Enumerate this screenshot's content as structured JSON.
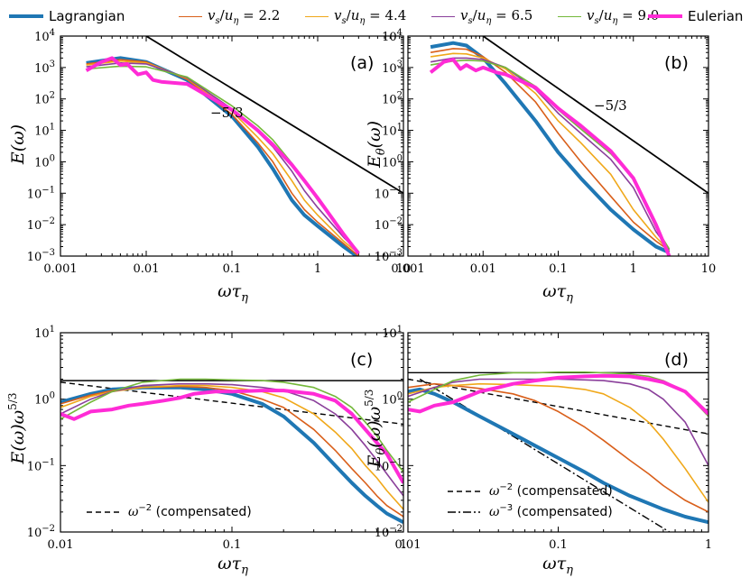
{
  "legend": [
    {
      "label": "Lagrangian",
      "color": "#1f77b4",
      "width": 4
    },
    {
      "label": "vs/uη = 2.2",
      "color": "#d95f1a",
      "width": 1.6
    },
    {
      "label": "vs/uη = 4.4",
      "color": "#f0a81a",
      "width": 1.6
    },
    {
      "label": "vs/uη = 6.5",
      "color": "#8a3f9a",
      "width": 1.6
    },
    {
      "label": "vs/uη = 9.0",
      "color": "#74b83a",
      "width": 1.6
    },
    {
      "label": "Eulerian",
      "color": "#ff2bd6",
      "width": 4
    }
  ],
  "chart_data": [
    {
      "type": "line",
      "panel": "(a)",
      "xscale": "log",
      "yscale": "log",
      "xlim": [
        0.001,
        10
      ],
      "ylim": [
        0.001,
        10000
      ],
      "xticks": [
        "0.001",
        "0.01",
        "0.1",
        "1",
        "10"
      ],
      "yticks": [
        "10^-3",
        "10^-2",
        "10^-1",
        "10^0",
        "10^1",
        "10^2",
        "10^3",
        "10^4"
      ],
      "xlabel": "ωτη",
      "ylabel": "E(ω)",
      "annotations": [
        {
          "text": "−5/3"
        }
      ],
      "reference_lines": [
        {
          "kind": "slope",
          "x": [
            0.01,
            10
          ],
          "y": [
            10000,
            0.1
          ]
        }
      ],
      "series": [
        {
          "name": "Lagrangian",
          "x": [
            0.002,
            0.005,
            0.01,
            0.03,
            0.1,
            0.2,
            0.3,
            0.5,
            0.7,
            1,
            2,
            3
          ],
          "y": [
            1400,
            2000,
            1500,
            400,
            28,
            3,
            0.6,
            0.06,
            0.02,
            0.009,
            0.002,
            0.0009
          ]
        },
        {
          "name": "vs/uη = 2.2",
          "x": [
            0.002,
            0.005,
            0.01,
            0.03,
            0.1,
            0.2,
            0.3,
            0.5,
            0.7,
            1,
            2,
            3
          ],
          "y": [
            1300,
            1800,
            1500,
            420,
            32,
            4,
            1,
            0.1,
            0.03,
            0.012,
            0.0025,
            0.001
          ]
        },
        {
          "name": "vs/uη = 4.4",
          "x": [
            0.002,
            0.005,
            0.01,
            0.03,
            0.1,
            0.2,
            0.3,
            0.5,
            0.7,
            1,
            2,
            3
          ],
          "y": [
            1200,
            1600,
            1400,
            450,
            40,
            6,
            1.8,
            0.25,
            0.06,
            0.02,
            0.003,
            0.0012
          ]
        },
        {
          "name": "vs/uη = 6.5",
          "x": [
            0.002,
            0.005,
            0.01,
            0.03,
            0.1,
            0.2,
            0.3,
            0.5,
            0.7,
            1,
            2,
            3
          ],
          "y": [
            1050,
            1400,
            1300,
            470,
            48,
            9,
            3,
            0.5,
            0.12,
            0.035,
            0.004,
            0.0013
          ]
        },
        {
          "name": "vs/uη = 9.0",
          "x": [
            0.002,
            0.005,
            0.01,
            0.03,
            0.1,
            0.2,
            0.3,
            0.5,
            0.7,
            1,
            2,
            3
          ],
          "y": [
            900,
            1100,
            1050,
            500,
            60,
            14,
            5,
            0.9,
            0.25,
            0.06,
            0.005,
            0.0014
          ]
        },
        {
          "name": "Eulerian",
          "x": [
            0.002,
            0.003,
            0.004,
            0.005,
            0.006,
            0.008,
            0.01,
            0.012,
            0.015,
            0.03,
            0.1,
            0.2,
            0.3,
            0.5,
            0.7,
            1,
            2,
            3
          ],
          "y": [
            800,
            1500,
            2000,
            1200,
            1300,
            600,
            700,
            400,
            350,
            300,
            45,
            10,
            3.5,
            0.8,
            0.25,
            0.07,
            0.005,
            0.0012
          ]
        }
      ]
    },
    {
      "type": "line",
      "panel": "(b)",
      "xscale": "log",
      "yscale": "log",
      "xlim": [
        0.001,
        10
      ],
      "ylim": [
        0.001,
        10000
      ],
      "xticks": [
        "0.001",
        "0.01",
        "0.1",
        "1",
        "10"
      ],
      "yticks": [
        "10^-3",
        "10^-2",
        "10^-1",
        "10^0",
        "10^1",
        "10^2",
        "10^3",
        "10^4"
      ],
      "xlabel": "ωτη",
      "ylabel": "Eθ(ω)",
      "annotations": [
        {
          "text": "−5/3"
        }
      ],
      "reference_lines": [
        {
          "kind": "slope",
          "x": [
            0.01,
            10
          ],
          "y": [
            10000,
            0.1
          ]
        }
      ],
      "series": [
        {
          "name": "Lagrangian",
          "x": [
            0.002,
            0.004,
            0.006,
            0.01,
            0.02,
            0.05,
            0.1,
            0.2,
            0.5,
            1,
            2,
            3
          ],
          "y": [
            4500,
            6000,
            5000,
            2000,
            300,
            20,
            2,
            0.3,
            0.03,
            0.007,
            0.002,
            0.0013
          ]
        },
        {
          "name": "vs/uη = 2.2",
          "x": [
            0.002,
            0.004,
            0.006,
            0.01,
            0.02,
            0.05,
            0.1,
            0.2,
            0.5,
            1,
            2,
            3
          ],
          "y": [
            3000,
            4000,
            3800,
            2200,
            700,
            80,
            8,
            1,
            0.08,
            0.012,
            0.003,
            0.0015
          ]
        },
        {
          "name": "vs/uη = 4.4",
          "x": [
            0.002,
            0.004,
            0.006,
            0.01,
            0.02,
            0.05,
            0.1,
            0.2,
            0.5,
            1,
            2,
            3
          ],
          "y": [
            2200,
            2800,
            2700,
            2000,
            900,
            150,
            20,
            4,
            0.4,
            0.03,
            0.004,
            0.0015
          ]
        },
        {
          "name": "vs/uη = 6.5",
          "x": [
            0.002,
            0.004,
            0.006,
            0.01,
            0.02,
            0.05,
            0.1,
            0.2,
            0.5,
            1,
            2,
            3
          ],
          "y": [
            1500,
            2000,
            2000,
            1800,
            1000,
            200,
            35,
            8,
            1.2,
            0.15,
            0.006,
            0.0016
          ]
        },
        {
          "name": "vs/uη = 9.0",
          "x": [
            0.002,
            0.004,
            0.006,
            0.01,
            0.02,
            0.05,
            0.1,
            0.2,
            0.5,
            1,
            2,
            3
          ],
          "y": [
            1200,
            1600,
            1700,
            1600,
            1000,
            250,
            45,
            11,
            1.8,
            0.3,
            0.008,
            0.0017
          ]
        },
        {
          "name": "Eulerian",
          "x": [
            0.002,
            0.003,
            0.004,
            0.005,
            0.006,
            0.008,
            0.01,
            0.015,
            0.02,
            0.05,
            0.1,
            0.2,
            0.5,
            1,
            2,
            3
          ],
          "y": [
            700,
            1500,
            1800,
            900,
            1200,
            800,
            1000,
            700,
            600,
            230,
            50,
            14,
            2.2,
            0.3,
            0.01,
            0.001
          ]
        }
      ]
    },
    {
      "type": "line",
      "panel": "(c)",
      "xscale": "log",
      "yscale": "log",
      "xlim": [
        0.01,
        1
      ],
      "ylim": [
        0.01,
        10
      ],
      "xticks": [
        "0.01",
        "0.1",
        "1"
      ],
      "yticks": [
        "10^-2",
        "10^-1",
        "10^0",
        "10^1"
      ],
      "xlabel": "ωτη",
      "ylabel": "E(ω)ω^5/3",
      "reference_lines": [
        {
          "kind": "horizontal",
          "y": 1.9
        },
        {
          "kind": "dashed",
          "label": "ω^-2 (compensated)",
          "x": [
            0.01,
            1
          ],
          "y": [
            1.8,
            0.42
          ]
        }
      ],
      "series": [
        {
          "name": "Lagrangian",
          "x": [
            0.01,
            0.015,
            0.02,
            0.03,
            0.05,
            0.07,
            0.1,
            0.15,
            0.2,
            0.3,
            0.4,
            0.5,
            0.6,
            0.7,
            0.8,
            1
          ],
          "y": [
            0.9,
            1.2,
            1.4,
            1.5,
            1.5,
            1.4,
            1.2,
            0.85,
            0.55,
            0.22,
            0.1,
            0.055,
            0.035,
            0.025,
            0.019,
            0.014
          ]
        },
        {
          "name": "vs/uη = 2.2",
          "x": [
            0.01,
            0.015,
            0.02,
            0.03,
            0.05,
            0.07,
            0.1,
            0.15,
            0.2,
            0.3,
            0.4,
            0.5,
            0.6,
            0.7,
            0.8,
            1
          ],
          "y": [
            0.85,
            1.15,
            1.35,
            1.5,
            1.55,
            1.5,
            1.35,
            1.0,
            0.75,
            0.35,
            0.17,
            0.09,
            0.055,
            0.035,
            0.025,
            0.017
          ]
        },
        {
          "name": "vs/uη = 4.4",
          "x": [
            0.01,
            0.015,
            0.02,
            0.03,
            0.05,
            0.07,
            0.1,
            0.15,
            0.2,
            0.3,
            0.4,
            0.5,
            0.6,
            0.7,
            0.8,
            1
          ],
          "y": [
            0.75,
            1.1,
            1.3,
            1.5,
            1.6,
            1.6,
            1.5,
            1.3,
            1.05,
            0.6,
            0.32,
            0.18,
            0.1,
            0.065,
            0.042,
            0.022
          ]
        },
        {
          "name": "vs/uη = 6.5",
          "x": [
            0.01,
            0.015,
            0.02,
            0.03,
            0.05,
            0.07,
            0.1,
            0.15,
            0.2,
            0.3,
            0.4,
            0.5,
            0.6,
            0.7,
            0.8,
            1
          ],
          "y": [
            0.6,
            1.0,
            1.3,
            1.6,
            1.7,
            1.7,
            1.65,
            1.5,
            1.35,
            0.95,
            0.6,
            0.35,
            0.2,
            0.12,
            0.075,
            0.035
          ]
        },
        {
          "name": "vs/uη = 9.0",
          "x": [
            0.01,
            0.015,
            0.02,
            0.03,
            0.05,
            0.07,
            0.1,
            0.15,
            0.2,
            0.3,
            0.4,
            0.5,
            0.6,
            0.7,
            0.8,
            1
          ],
          "y": [
            0.5,
            0.9,
            1.3,
            1.8,
            2.0,
            2.0,
            1.95,
            1.9,
            1.8,
            1.5,
            1.1,
            0.75,
            0.45,
            0.28,
            0.17,
            0.08
          ]
        },
        {
          "name": "Eulerian",
          "x": [
            0.01,
            0.012,
            0.015,
            0.02,
            0.025,
            0.03,
            0.04,
            0.05,
            0.06,
            0.08,
            0.1,
            0.15,
            0.2,
            0.3,
            0.4,
            0.5,
            0.6,
            0.7,
            0.8,
            1
          ],
          "y": [
            0.6,
            0.5,
            0.65,
            0.7,
            0.8,
            0.85,
            0.95,
            1.05,
            1.2,
            1.3,
            1.3,
            1.35,
            1.35,
            1.2,
            0.95,
            0.6,
            0.35,
            0.22,
            0.15,
            0.055
          ]
        }
      ]
    },
    {
      "type": "line",
      "panel": "(d)",
      "xscale": "log",
      "yscale": "log",
      "xlim": [
        0.01,
        1
      ],
      "ylim": [
        0.01,
        10
      ],
      "xticks": [
        "0.01",
        "0.1",
        "1"
      ],
      "yticks": [
        "10^-2",
        "10^-1",
        "10^0",
        "10^1"
      ],
      "xlabel": "ωτη",
      "ylabel": "Eθ(ω)ω^5/3",
      "reference_lines": [
        {
          "kind": "horizontal",
          "y": 2.5
        },
        {
          "kind": "dashed",
          "label": "ω^-2 (compensated)",
          "x": [
            0.01,
            1
          ],
          "y": [
            2.0,
            0.3
          ]
        },
        {
          "kind": "dashdot",
          "label": "ω^-3 (compensated)",
          "x": [
            0.012,
            0.55
          ],
          "y": [
            2.0,
            0.01
          ]
        }
      ],
      "series": [
        {
          "name": "Lagrangian",
          "x": [
            0.01,
            0.012,
            0.015,
            0.02,
            0.03,
            0.05,
            0.07,
            0.1,
            0.15,
            0.2,
            0.3,
            0.5,
            0.7,
            1
          ],
          "y": [
            1.3,
            1.4,
            1.2,
            0.9,
            0.55,
            0.3,
            0.2,
            0.13,
            0.08,
            0.055,
            0.035,
            0.022,
            0.017,
            0.014
          ]
        },
        {
          "name": "vs/uη = 2.2",
          "x": [
            0.01,
            0.015,
            0.02,
            0.03,
            0.05,
            0.07,
            0.1,
            0.15,
            0.2,
            0.3,
            0.4,
            0.5,
            0.7,
            1
          ],
          "y": [
            1.5,
            1.7,
            1.6,
            1.45,
            1.2,
            0.95,
            0.65,
            0.38,
            0.24,
            0.12,
            0.075,
            0.05,
            0.03,
            0.02
          ]
        },
        {
          "name": "vs/uη = 4.4",
          "x": [
            0.01,
            0.015,
            0.02,
            0.03,
            0.05,
            0.07,
            0.1,
            0.15,
            0.2,
            0.3,
            0.4,
            0.5,
            0.7,
            1
          ],
          "y": [
            1.2,
            1.5,
            1.6,
            1.7,
            1.65,
            1.6,
            1.55,
            1.4,
            1.2,
            0.75,
            0.45,
            0.25,
            0.09,
            0.028
          ]
        },
        {
          "name": "vs/uη = 6.5",
          "x": [
            0.01,
            0.015,
            0.02,
            0.03,
            0.05,
            0.07,
            0.1,
            0.15,
            0.2,
            0.3,
            0.4,
            0.5,
            0.7,
            1
          ],
          "y": [
            1.1,
            1.5,
            1.8,
            2.0,
            2.0,
            2.0,
            2.0,
            1.95,
            1.9,
            1.7,
            1.4,
            1.0,
            0.45,
            0.1
          ]
        },
        {
          "name": "vs/uη = 9.0",
          "x": [
            0.01,
            0.015,
            0.02,
            0.03,
            0.05,
            0.07,
            0.1,
            0.15,
            0.2,
            0.3,
            0.4,
            0.5,
            0.7,
            1
          ],
          "y": [
            0.9,
            1.4,
            1.9,
            2.3,
            2.5,
            2.5,
            2.55,
            2.55,
            2.5,
            2.4,
            2.2,
            1.9,
            1.3,
            0.55
          ]
        },
        {
          "name": "Eulerian",
          "x": [
            0.01,
            0.012,
            0.015,
            0.02,
            0.025,
            0.03,
            0.04,
            0.05,
            0.07,
            0.1,
            0.15,
            0.2,
            0.3,
            0.4,
            0.5,
            0.7,
            1
          ],
          "y": [
            0.7,
            0.65,
            0.8,
            0.9,
            1.1,
            1.3,
            1.5,
            1.7,
            1.9,
            2.1,
            2.2,
            2.25,
            2.2,
            2.0,
            1.8,
            1.3,
            0.6
          ]
        }
      ]
    }
  ]
}
